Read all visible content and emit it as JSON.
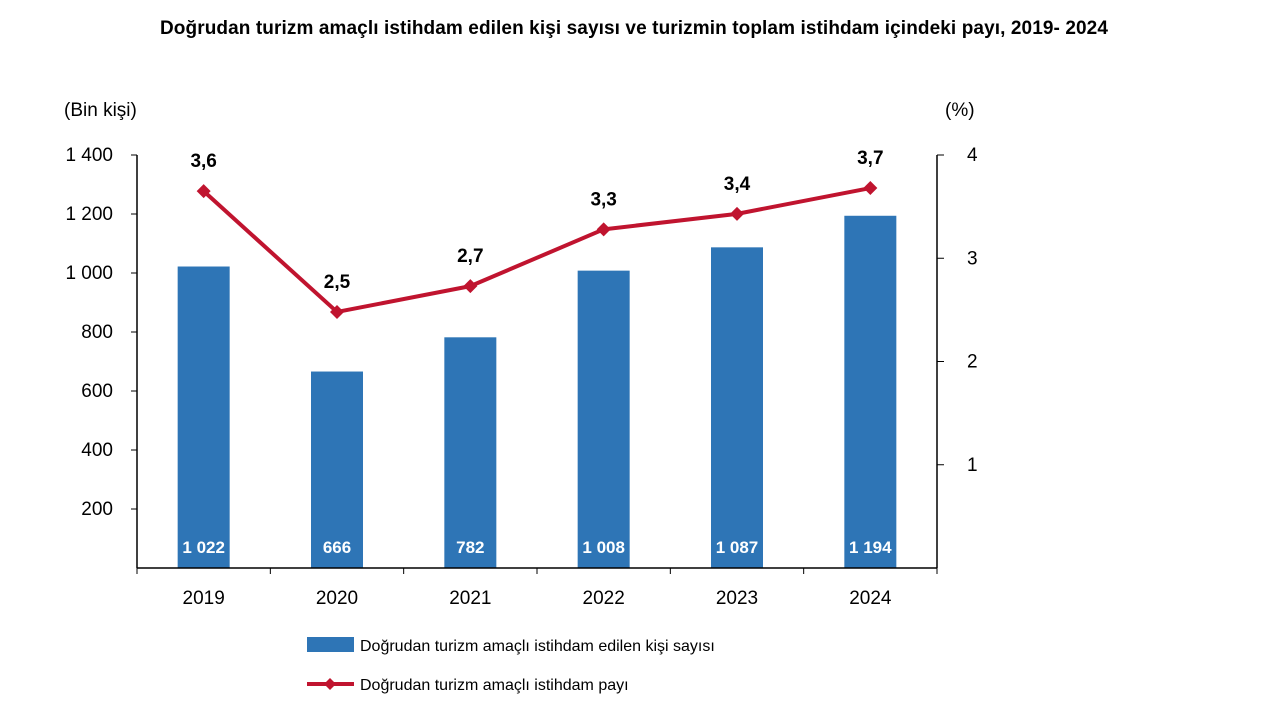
{
  "title": "Doğrudan turizm amaçlı istihdam edilen kişi sayısı ve turizmin toplam istihdam içindeki payı, 2019- 2024",
  "colors": {
    "bar": "#2e75b6",
    "line": "#c0142f",
    "axis": "#000000"
  },
  "chart_data": {
    "type": "bar",
    "title": "Doğrudan turizm amaçlı istihdam edilen kişi sayısı ve turizmin toplam istihdam içindeki payı, 2019- 2024",
    "categories": [
      "2019",
      "2020",
      "2021",
      "2022",
      "2023",
      "2024"
    ],
    "ylabel_left": "(Bin kişi)",
    "ylabel_right": "(%)",
    "ylim_left": [
      0,
      1400
    ],
    "ylim_right": [
      0,
      4
    ],
    "yticks_left": [
      "1 400",
      "1 200",
      "1 000",
      "800",
      "600",
      "400",
      "200"
    ],
    "yticks_right": [
      "4",
      "3",
      "2",
      "1"
    ],
    "grid": false,
    "legend_position": "bottom",
    "series": [
      {
        "name": "Doğrudan turizm amaçlı istihdam edilen kişi sayısı",
        "type": "bar",
        "axis": "left",
        "values": [
          1022,
          666,
          782,
          1008,
          1087,
          1194
        ],
        "labels": [
          "1 022",
          "666",
          "782",
          "1 008",
          "1 087",
          "1 194"
        ]
      },
      {
        "name": "Doğrudan turizm amaçlı istihdam payı",
        "type": "line",
        "axis": "right",
        "values": [
          3.65,
          2.48,
          2.73,
          3.28,
          3.43,
          3.68
        ],
        "labels": [
          "3,6",
          "2,5",
          "2,7",
          "3,3",
          "3,4",
          "3,7"
        ]
      }
    ]
  }
}
